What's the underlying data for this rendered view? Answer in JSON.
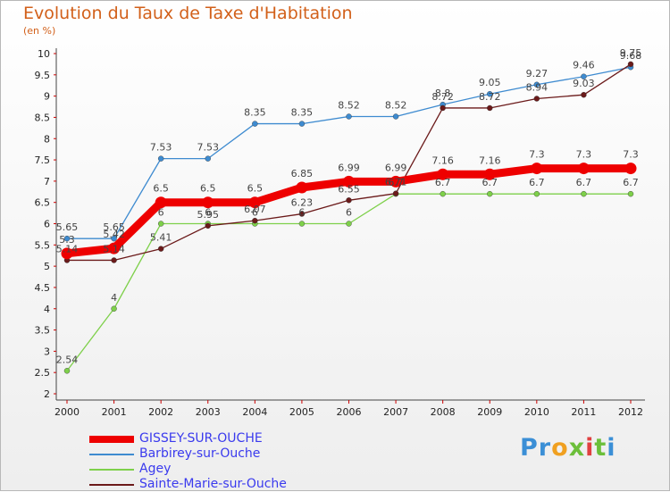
{
  "title": "Evolution du Taux de Taxe d'Habitation",
  "subtitle": "(en %)",
  "logo": {
    "text": "Proxiti",
    "letters": [
      "P",
      "r",
      "o",
      "x",
      "i",
      "t",
      "i"
    ],
    "colors": [
      "#3b8fd6",
      "#3b8fd6",
      "#f0a020",
      "#6cbf3a",
      "#e04040",
      "#6cbf3a",
      "#3b8fd6"
    ]
  },
  "chart_data": {
    "type": "line",
    "title": "Evolution du Taux de Taxe d'Habitation",
    "ylabel": "(en %)",
    "xlabel": "",
    "categories": [
      "2000",
      "2001",
      "2002",
      "2003",
      "2004",
      "2005",
      "2006",
      "2007",
      "2008",
      "2009",
      "2010",
      "2011",
      "2012"
    ],
    "ylim": [
      2,
      10
    ],
    "ytick_step": 0.5,
    "grid": false,
    "legend_position": "bottom-left",
    "series": [
      {
        "name": "GISSEY-SUR-OUCHE",
        "color": "#ee0000",
        "values": [
          5.3,
          5.42,
          6.5,
          6.5,
          6.5,
          6.85,
          6.99,
          6.99,
          7.16,
          7.16,
          7.3,
          7.3,
          7.3
        ],
        "labels": [
          "5.3",
          "5.42",
          "6.5",
          "6.5",
          "6.5",
          "6.85",
          "6.99",
          "6.99",
          "7.16",
          "7.16",
          "7.3",
          "7.3",
          "7.3"
        ]
      },
      {
        "name": "Barbirey-sur-Ouche",
        "color": "#3e8bd0",
        "values": [
          5.65,
          5.65,
          7.53,
          7.53,
          8.35,
          8.35,
          8.52,
          8.52,
          8.8,
          9.05,
          9.27,
          9.46,
          9.68
        ],
        "labels": [
          "5.65",
          "5.65",
          "7.53",
          "7.53",
          "8.35",
          "8.35",
          "8.52",
          "8.52",
          "8.8",
          "9.05",
          "9.27",
          "9.46",
          "9.68"
        ]
      },
      {
        "name": "Agey",
        "color": "#7ed04a",
        "values": [
          2.54,
          4,
          6,
          6,
          6,
          6,
          6,
          6.7,
          6.7,
          6.7,
          6.7,
          6.7,
          6.7
        ],
        "labels": [
          "2.54",
          "4",
          "6",
          "6",
          "6",
          "6",
          "6",
          "6.7",
          "6.7",
          "6.7",
          "6.7",
          "6.7",
          "6.7"
        ]
      },
      {
        "name": "Sainte-Marie-sur-Ouche",
        "color": "#6b1a1a",
        "values": [
          5.14,
          5.14,
          5.41,
          5.95,
          6.07,
          6.23,
          6.55,
          6.71,
          8.72,
          8.72,
          8.94,
          9.03,
          9.75
        ],
        "labels": [
          "5.14",
          "5.14",
          "5.41",
          "5.95",
          "6.07",
          "6.23",
          "6.55",
          "6.71",
          "8.72",
          "8.72",
          "8.94",
          "9.03",
          "9.75"
        ]
      }
    ]
  }
}
